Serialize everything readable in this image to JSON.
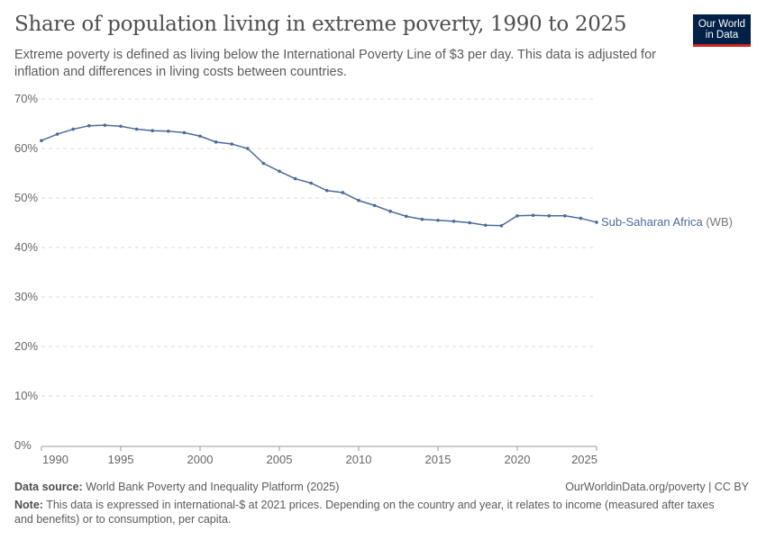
{
  "header": {
    "title": "Share of population living in extreme poverty, 1990 to 2025",
    "subtitle": "Extreme poverty is defined as living below the International Poverty Line of $3 per day. This data is adjusted for inflation and differences in living costs between countries.",
    "logo": "Our World in Data"
  },
  "footer": {
    "source_label": "Data source:",
    "source": "World Bank Poverty and Inequality Platform (2025)",
    "url": "OurWorldinData.org/poverty | CC BY",
    "note_label": "Note:",
    "note": "This data is expressed in international-$ at 2021 prices. Depending on the country and year, it relates to income (measured after taxes and benefits) or to consumption, per capita."
  },
  "chart_data": {
    "type": "line",
    "title": "Share of population living in extreme poverty, 1990 to 2025",
    "xlabel": "",
    "ylabel": "",
    "xlim": [
      1990,
      2025
    ],
    "ylim": [
      0,
      70
    ],
    "yticks": [
      0,
      10,
      20,
      30,
      40,
      50,
      60,
      70
    ],
    "ytick_labels": [
      "0%",
      "10%",
      "20%",
      "30%",
      "40%",
      "50%",
      "60%",
      "70%"
    ],
    "xticks": [
      1990,
      1995,
      2000,
      2005,
      2010,
      2015,
      2020,
      2025
    ],
    "xtick_labels": [
      "1990",
      "1995",
      "2000",
      "2005",
      "2010",
      "2015",
      "2020",
      "2025"
    ],
    "grid": "horizontal dashed",
    "legend": "inline-right",
    "color": "#4c6a9c",
    "series": [
      {
        "name": "Sub-Saharan Africa",
        "name_suffix": "(WB)",
        "x": [
          1990,
          1991,
          1992,
          1993,
          1994,
          1995,
          1996,
          1997,
          1998,
          1999,
          2000,
          2001,
          2002,
          2003,
          2004,
          2005,
          2006,
          2007,
          2008,
          2009,
          2010,
          2011,
          2012,
          2013,
          2014,
          2015,
          2016,
          2017,
          2018,
          2019,
          2020,
          2021,
          2022,
          2023,
          2024,
          2025
        ],
        "values": [
          61.6,
          62.9,
          63.9,
          64.6,
          64.7,
          64.5,
          63.9,
          63.6,
          63.5,
          63.2,
          62.5,
          61.3,
          60.9,
          60.0,
          57.0,
          55.4,
          53.9,
          53.0,
          51.5,
          51.1,
          49.5,
          48.5,
          47.3,
          46.3,
          45.7,
          45.5,
          45.3,
          45.0,
          44.5,
          44.4,
          46.4,
          46.5,
          46.4,
          46.4,
          45.9,
          45.1
        ]
      }
    ]
  }
}
